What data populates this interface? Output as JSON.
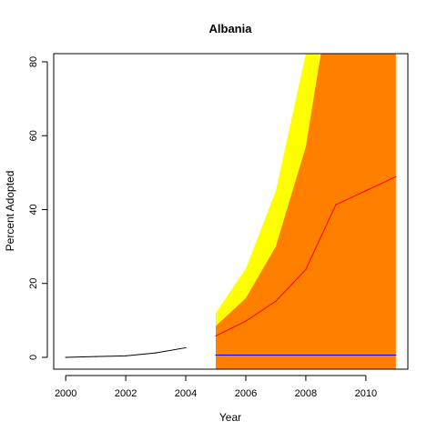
{
  "chart_data": {
    "type": "area",
    "title": "Albania",
    "xlabel": "Year",
    "ylabel": "Percent Adopted",
    "xlim": [
      1999.6,
      2011.4
    ],
    "ylim": [
      -3.2,
      82.2
    ],
    "x_ticks": [
      2000,
      2002,
      2004,
      2006,
      2008,
      2010
    ],
    "x_tick_labels": [
      "2000",
      "2002",
      "2004",
      "2006",
      "2008",
      "2010"
    ],
    "y_ticks": [
      0,
      20,
      40,
      60,
      80
    ],
    "y_tick_labels": [
      "0",
      "20",
      "40",
      "60",
      "80"
    ],
    "grid": false,
    "legend": "none",
    "series": [
      {
        "role": "historical",
        "color": "#000000",
        "x": [
          2000,
          2001,
          2002,
          2003,
          2004
        ],
        "y": [
          0,
          0.2,
          0.4,
          1.2,
          2.6
        ]
      },
      {
        "role": "outer band",
        "color": "#FFFF00",
        "x": [
          2005,
          2006,
          2007,
          2008,
          2008.45
        ],
        "upper": [
          12,
          24,
          45,
          82.2,
          82.2
        ],
        "lower": [
          0,
          0,
          0,
          0,
          0
        ]
      },
      {
        "role": "inner band",
        "color": "#FF7F00",
        "x": [
          2005,
          2006,
          2007,
          2008,
          2008.5,
          2011
        ],
        "upper": [
          8.5,
          16,
          30,
          57,
          82.2,
          82.2
        ],
        "lower": [
          -3.2,
          -3.2,
          -3.2,
          -3.2,
          -3.2,
          -3.2
        ]
      },
      {
        "role": "forecast median",
        "color": "#FF0000",
        "x": [
          2005,
          2006,
          2007,
          2008,
          2009,
          2010,
          2011
        ],
        "y": [
          5.8,
          9.8,
          15.2,
          23.8,
          41.3,
          45.1,
          48.9
        ]
      },
      {
        "role": "baseline",
        "color": "#0000FF",
        "x": [
          2005,
          2011
        ],
        "y": [
          0.6,
          0.6
        ]
      }
    ]
  }
}
